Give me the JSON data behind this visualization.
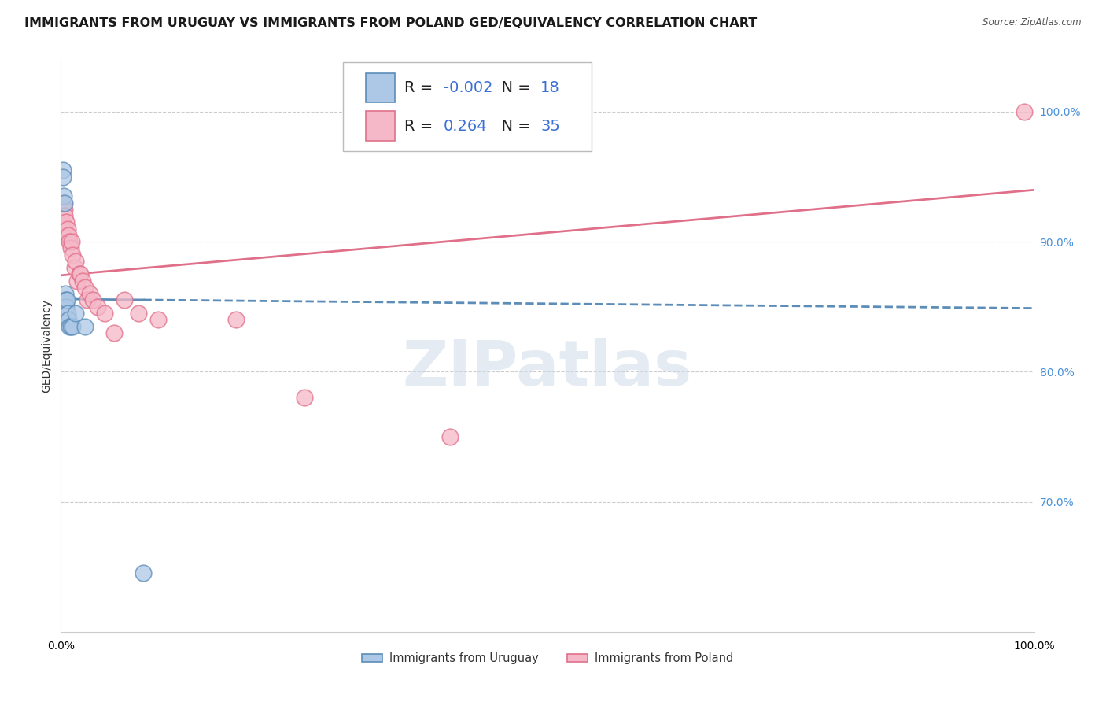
{
  "title": "IMMIGRANTS FROM URUGUAY VS IMMIGRANTS FROM POLAND GED/EQUIVALENCY CORRELATION CHART",
  "source": "Source: ZipAtlas.com",
  "ylabel": "GED/Equivalency",
  "right_yticks": [
    100.0,
    90.0,
    80.0,
    70.0
  ],
  "legend_r_uruguay": "-0.002",
  "legend_n_uruguay": "18",
  "legend_r_poland": "0.264",
  "legend_n_poland": "35",
  "color_uruguay": "#adc8e6",
  "color_poland": "#f5b8c8",
  "line_color_uruguay": "#5b8db8",
  "line_color_poland": "#e0708a",
  "watermark": "ZIPatlas",
  "uruguay_x": [
    0.15,
    0.2,
    0.25,
    0.3,
    0.35,
    0.4,
    0.45,
    0.5,
    0.55,
    0.6,
    0.7,
    0.8,
    0.9,
    1.0,
    1.2,
    1.5,
    2.5,
    8.5
  ],
  "uruguay_y": [
    84.5,
    95.5,
    95.0,
    93.5,
    93.0,
    85.5,
    86.0,
    85.5,
    85.0,
    85.5,
    84.5,
    84.0,
    83.5,
    83.5,
    83.5,
    84.5,
    83.5,
    64.5
  ],
  "poland_x": [
    0.1,
    0.15,
    0.2,
    0.25,
    0.3,
    0.35,
    0.4,
    0.5,
    0.6,
    0.7,
    0.8,
    0.9,
    1.0,
    1.1,
    1.2,
    1.4,
    1.5,
    1.7,
    1.9,
    2.0,
    2.2,
    2.5,
    2.7,
    3.0,
    3.3,
    3.8,
    4.5,
    5.5,
    6.5,
    8.0,
    10.0,
    18.0,
    25.0,
    40.0,
    99.0
  ],
  "poland_y": [
    91.5,
    91.0,
    90.5,
    91.0,
    93.0,
    92.5,
    92.0,
    91.5,
    90.5,
    91.0,
    90.5,
    90.0,
    89.5,
    90.0,
    89.0,
    88.0,
    88.5,
    87.0,
    87.5,
    87.5,
    87.0,
    86.5,
    85.5,
    86.0,
    85.5,
    85.0,
    84.5,
    83.0,
    85.5,
    84.5,
    84.0,
    84.0,
    78.0,
    75.0,
    100.0
  ],
  "uru_line_x_solid_end": 40.0,
  "xmin": 0.0,
  "xmax": 100.0,
  "ymin": 60.0,
  "ymax": 104.0,
  "grid_color": "#cccccc",
  "background_color": "#ffffff",
  "title_fontsize": 11.5,
  "axis_fontsize": 10,
  "legend_fontsize": 14,
  "right_tick_color": "#4a90d9"
}
